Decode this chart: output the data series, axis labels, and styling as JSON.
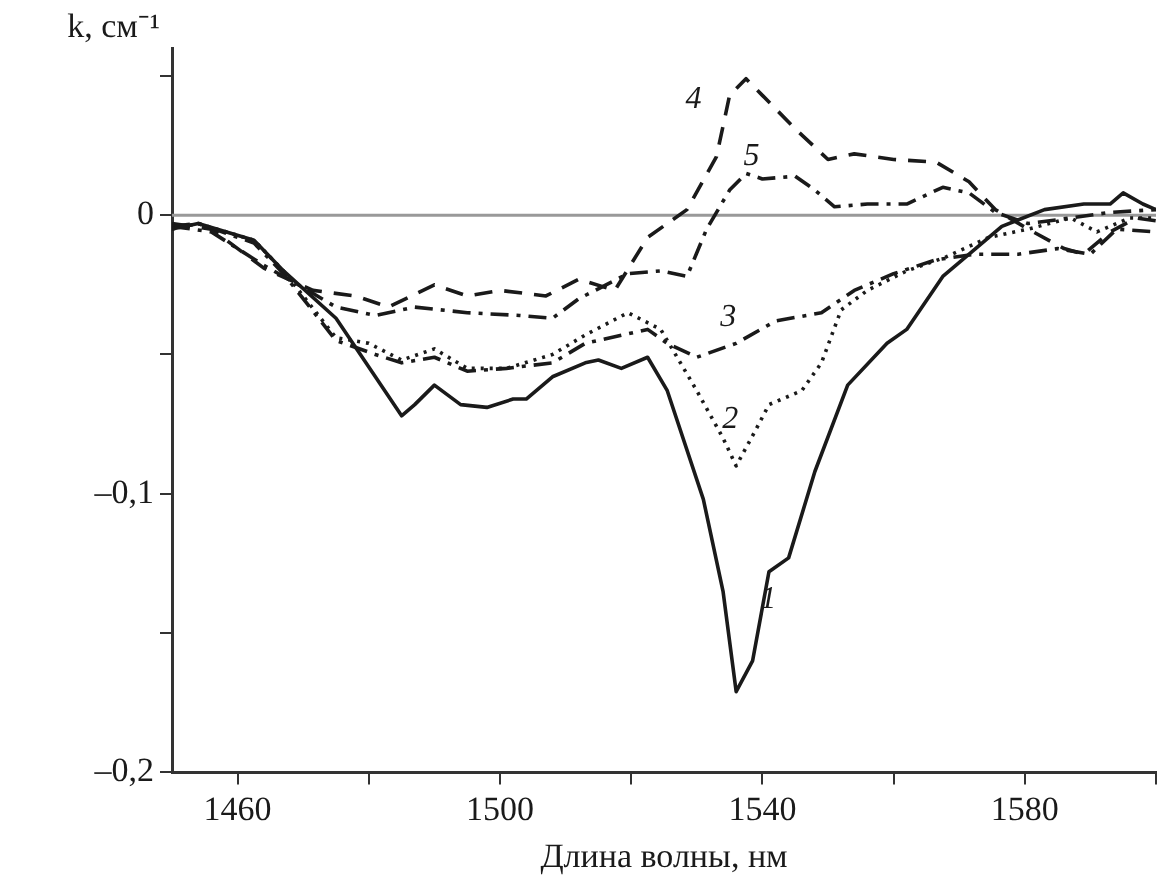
{
  "chart_data": {
    "type": "line",
    "xlabel": "Длина волны, нм",
    "ylabel": "k, см⁻¹",
    "xlim": [
      1450,
      1600
    ],
    "xticks": [
      1460,
      {
        "value": 1480,
        "label": null
      },
      1500,
      {
        "value": 1520,
        "label": null
      },
      1540,
      {
        "value": 1560,
        "label": null
      },
      1580,
      {
        "value": 1600,
        "label": null
      }
    ],
    "ylim": [
      -0.2,
      0.06
    ],
    "yticks": [
      {
        "value": -0.2,
        "label": "–0,2"
      },
      {
        "value": -0.15,
        "label": null
      },
      {
        "value": -0.1,
        "label": "–0,1"
      },
      {
        "value": -0.05,
        "label": null
      },
      0,
      {
        "value": 0.05,
        "label": null
      }
    ],
    "grid": false,
    "legend": false,
    "marker": "none",
    "ref_lines": [
      {
        "axis": "y",
        "value": 0,
        "color": "#999999"
      }
    ],
    "series": [
      {
        "name": "1",
        "color": "#1a1a1a",
        "line_style": "solid",
        "x": [
          1450,
          1454,
          1462.5,
          1467,
          1475,
          1481,
          1485,
          1487,
          1490,
          1494,
          1498,
          1502,
          1504,
          1508,
          1513,
          1515,
          1518.5,
          1522.5,
          1525.5,
          1531,
          1534,
          1536,
          1538.5,
          1541,
          1544,
          1548,
          1553,
          1559,
          1562,
          1567.5,
          1572.5,
          1576.5,
          1583,
          1589,
          1593,
          1595,
          1598,
          1600
        ],
        "values": [
          -0.005,
          -0.003,
          -0.009,
          -0.02,
          -0.037,
          -0.058,
          -0.072,
          -0.068,
          -0.061,
          -0.068,
          -0.069,
          -0.066,
          -0.066,
          -0.058,
          -0.053,
          -0.052,
          -0.055,
          -0.051,
          -0.063,
          -0.102,
          -0.135,
          -0.171,
          -0.16,
          -0.128,
          -0.123,
          -0.092,
          -0.061,
          -0.046,
          -0.041,
          -0.022,
          -0.012,
          -0.004,
          0.002,
          0.004,
          0.004,
          0.008,
          0.004,
          0.002
        ]
      },
      {
        "name": "2",
        "color": "#1a1a1a",
        "line_style": "dotted",
        "x": [
          1450,
          1454,
          1462.5,
          1467,
          1475,
          1480,
          1485,
          1490,
          1495,
          1501,
          1508,
          1513,
          1519.5,
          1524.5,
          1530,
          1534,
          1536,
          1539,
          1541,
          1546,
          1549,
          1552,
          1556,
          1562,
          1568,
          1574.5,
          1580.5,
          1587,
          1591,
          1596,
          1600
        ],
        "values": [
          -0.005,
          -0.003,
          -0.009,
          -0.02,
          -0.044,
          -0.046,
          -0.052,
          -0.048,
          -0.055,
          -0.055,
          -0.05,
          -0.043,
          -0.035,
          -0.041,
          -0.063,
          -0.08,
          -0.09,
          -0.077,
          -0.068,
          -0.063,
          -0.053,
          -0.034,
          -0.027,
          -0.02,
          -0.015,
          -0.008,
          -0.005,
          -0.001,
          -0.006,
          -0.001,
          -0.001
        ]
      },
      {
        "name": "3",
        "color": "#1a1a1a",
        "line_style": "dashdot",
        "x": [
          1450,
          1454,
          1462.5,
          1467,
          1475,
          1481,
          1485,
          1490,
          1495,
          1501,
          1508,
          1513,
          1522.5,
          1525.5,
          1530,
          1536,
          1542,
          1549,
          1554,
          1560,
          1566.5,
          1572.5,
          1579,
          1585,
          1590,
          1594,
          1600
        ],
        "values": [
          -0.004,
          -0.003,
          -0.01,
          -0.021,
          -0.045,
          -0.05,
          -0.053,
          -0.051,
          -0.056,
          -0.055,
          -0.053,
          -0.046,
          -0.041,
          -0.046,
          -0.051,
          -0.046,
          -0.038,
          -0.035,
          -0.027,
          -0.021,
          -0.016,
          -0.014,
          -0.014,
          -0.012,
          -0.014,
          -0.005,
          -0.006
        ]
      },
      {
        "name": "4",
        "color": "#1a1a1a",
        "line_style": "dashed",
        "x": [
          1450,
          1456,
          1464,
          1471.5,
          1478,
          1483,
          1490,
          1495,
          1500,
          1507,
          1512,
          1517.5,
          1522.5,
          1528.5,
          1533,
          1535,
          1537.5,
          1540,
          1545,
          1550,
          1554,
          1560,
          1566.5,
          1571.5,
          1575.5,
          1580.5,
          1586,
          1589,
          1593,
          1597,
          1600
        ],
        "values": [
          -0.003,
          -0.005,
          -0.019,
          -0.027,
          -0.029,
          -0.033,
          -0.025,
          -0.029,
          -0.027,
          -0.029,
          -0.023,
          -0.027,
          -0.008,
          0.002,
          0.021,
          0.043,
          0.049,
          0.043,
          0.031,
          0.02,
          0.022,
          0.02,
          0.019,
          0.012,
          0.002,
          -0.005,
          -0.012,
          -0.014,
          -0.006,
          -0.001,
          -0.002
        ]
      },
      {
        "name": "5",
        "color": "#1a1a1a",
        "line_style": "dashdot",
        "x": [
          1450,
          1456,
          1464,
          1470,
          1475,
          1481,
          1487,
          1495,
          1503,
          1508,
          1512,
          1519.5,
          1524.5,
          1528.5,
          1531.5,
          1535,
          1537.5,
          1540,
          1545,
          1548,
          1551,
          1556,
          1562,
          1567.5,
          1571.5,
          1575.5,
          1580.5,
          1587,
          1593,
          1600
        ],
        "values": [
          -0.004,
          -0.006,
          -0.018,
          -0.026,
          -0.033,
          -0.036,
          -0.033,
          -0.035,
          -0.036,
          -0.037,
          -0.03,
          -0.021,
          -0.02,
          -0.022,
          -0.005,
          0.009,
          0.015,
          0.013,
          0.014,
          0.009,
          0.003,
          0.004,
          0.004,
          0.01,
          0.008,
          0.001,
          -0.003,
          -0.001,
          0.001,
          0.002
        ]
      }
    ]
  }
}
